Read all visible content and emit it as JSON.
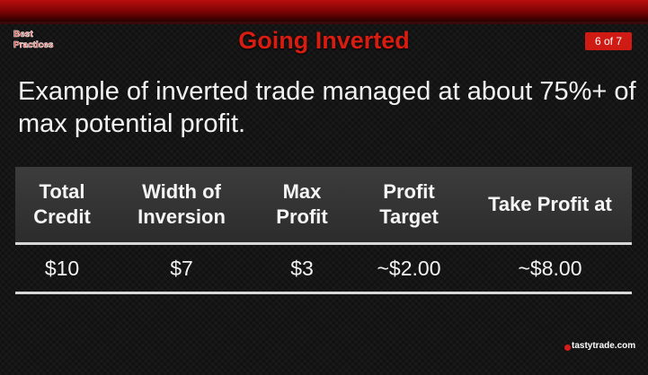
{
  "logo": {
    "text": "Best Practices"
  },
  "slide": {
    "title": "Going Inverted",
    "page": "6 of 7",
    "body": "Example of inverted trade managed at about 75%+ of max potential profit."
  },
  "table": {
    "headers": [
      [
        "Total",
        "Credit"
      ],
      [
        "Width of",
        "Inversion"
      ],
      [
        "Max",
        "Profit"
      ],
      [
        "Profit",
        "Target"
      ],
      [
        "Take Profit at"
      ]
    ],
    "rows": [
      [
        "$10",
        "$7",
        "$3",
        "~$2.00",
        "~$8.00"
      ]
    ]
  },
  "brand": {
    "text": "tastytrade.com"
  },
  "colors": {
    "accent": "#d91c10",
    "badge": "#d01b14",
    "background": "#111111",
    "header_bg": "#363636",
    "rule": "#d8d8d8"
  },
  "icons": {
    "brand_mark": "cherry-icon"
  }
}
